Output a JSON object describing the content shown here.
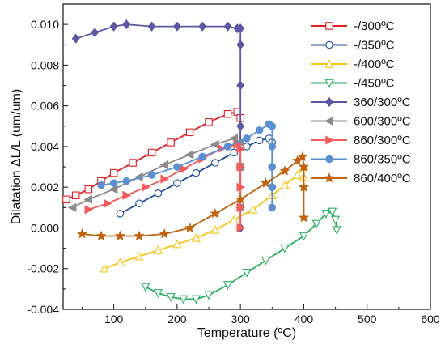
{
  "chart_data": {
    "type": "line",
    "title": "",
    "xlabel": "Temperature (ºC)",
    "ylabel": "Dilatation ΔL/L (um/um)",
    "xlim": [
      20,
      600
    ],
    "ylim": [
      -0.004,
      0.011
    ],
    "x_ticks": [
      100,
      200,
      300,
      400,
      500,
      600
    ],
    "x_tick_labels": [
      "100",
      "200",
      "300",
      "400",
      "500",
      "600"
    ],
    "y_ticks": [
      -0.004,
      -0.002,
      0.0,
      0.002,
      0.004,
      0.006,
      0.008,
      0.01
    ],
    "y_tick_labels": [
      "-0.004",
      "-0.002",
      "0.000",
      "0.002",
      "0.004",
      "0.006",
      "0.008",
      "0.010"
    ],
    "grid": false,
    "legend_position": "top-right",
    "series": [
      {
        "name": "-/300ºC",
        "color": "#e02020",
        "marker": "square",
        "filled": false,
        "x": [
          25,
          40,
          60,
          80,
          100,
          130,
          160,
          190,
          220,
          250,
          280,
          295,
          300,
          300,
          300
        ],
        "y": [
          0.0014,
          0.0016,
          0.0019,
          0.0023,
          0.0027,
          0.0032,
          0.0037,
          0.0042,
          0.0047,
          0.0052,
          0.0056,
          0.0057,
          0.0054,
          0.004,
          0.003
        ]
      },
      {
        "name": "-/350ºC",
        "color": "#1f4e9c",
        "marker": "circle",
        "filled": false,
        "x": [
          110,
          140,
          170,
          200,
          230,
          260,
          290,
          310,
          330,
          345,
          350,
          350,
          350
        ],
        "y": [
          0.0007,
          0.0012,
          0.0017,
          0.0022,
          0.0027,
          0.0032,
          0.0037,
          0.004,
          0.0043,
          0.0044,
          0.0042,
          0.003,
          0.002
        ]
      },
      {
        "name": "-/400ºC",
        "color": "#f5c518",
        "marker": "triangle-up",
        "filled": false,
        "x": [
          85,
          110,
          140,
          170,
          200,
          230,
          260,
          290,
          320,
          350,
          370,
          390,
          400,
          400
        ],
        "y": [
          -0.002,
          -0.0017,
          -0.0014,
          -0.0011,
          -0.0008,
          -0.0005,
          -0.0001,
          0.0004,
          0.0009,
          0.0016,
          0.0021,
          0.0026,
          0.003,
          0.0025
        ]
      },
      {
        "name": "-/450ºC",
        "color": "#27b061",
        "marker": "triangle-down",
        "filled": false,
        "x": [
          150,
          170,
          190,
          210,
          230,
          250,
          280,
          310,
          340,
          370,
          400,
          420,
          435,
          445,
          450,
          452
        ],
        "y": [
          -0.0029,
          -0.0032,
          -0.0034,
          -0.0035,
          -0.0035,
          -0.0033,
          -0.0028,
          -0.0022,
          -0.0016,
          -0.001,
          -0.0004,
          0.0002,
          0.0007,
          0.0008,
          0.0004,
          -0.0001
        ]
      },
      {
        "name": "360/300ºC",
        "color": "#5b57a3",
        "marker": "diamond",
        "filled": true,
        "x": [
          40,
          70,
          100,
          120,
          160,
          200,
          240,
          280,
          295,
          300,
          300,
          300,
          300,
          300,
          300,
          300
        ],
        "y": [
          0.0093,
          0.0096,
          0.0099,
          0.01,
          0.0099,
          0.0099,
          0.0099,
          0.0099,
          0.0098,
          0.0098,
          0.009,
          0.007,
          0.005,
          0.003,
          0.001,
          0.0
        ]
      },
      {
        "name": "600/300ºC",
        "color": "#8c8c8c",
        "marker": "triangle-left",
        "filled": true,
        "x": [
          35,
          60,
          100,
          140,
          180,
          220,
          260,
          290,
          300,
          300,
          300
        ],
        "y": [
          0.001,
          0.0014,
          0.0019,
          0.0025,
          0.0031,
          0.0036,
          0.0041,
          0.0044,
          0.0042,
          0.003,
          0.001
        ]
      },
      {
        "name": "860/300ºC",
        "color": "#f45b5b",
        "marker": "triangle-right",
        "filled": true,
        "x": [
          60,
          90,
          120,
          150,
          180,
          210,
          240,
          270,
          295,
          300,
          300,
          300,
          300,
          300
        ],
        "y": [
          0.0009,
          0.0012,
          0.0016,
          0.002,
          0.0024,
          0.0029,
          0.0034,
          0.0039,
          0.0041,
          0.0039,
          0.003,
          0.002,
          0.001,
          0.0
        ]
      },
      {
        "name": "860/350ºC",
        "color": "#5b8fd1",
        "marker": "circle",
        "filled": true,
        "x": [
          80,
          100,
          120,
          160,
          200,
          240,
          280,
          310,
          330,
          345,
          350,
          350,
          350,
          350,
          350
        ],
        "y": [
          0.0021,
          0.0022,
          0.0023,
          0.0026,
          0.003,
          0.0035,
          0.004,
          0.0044,
          0.0048,
          0.0051,
          0.005,
          0.004,
          0.003,
          0.002,
          0.001
        ]
      },
      {
        "name": "860/400ºC",
        "color": "#c0620e",
        "marker": "star",
        "filled": true,
        "x": [
          50,
          80,
          110,
          140,
          180,
          220,
          260,
          300,
          340,
          370,
          390,
          398,
          400,
          400,
          400
        ],
        "y": [
          -0.0003,
          -0.0004,
          -0.0004,
          -0.0004,
          -0.0003,
          0.0,
          0.0007,
          0.0014,
          0.0022,
          0.0028,
          0.0033,
          0.0035,
          0.003,
          0.002,
          0.0005
        ]
      }
    ]
  }
}
